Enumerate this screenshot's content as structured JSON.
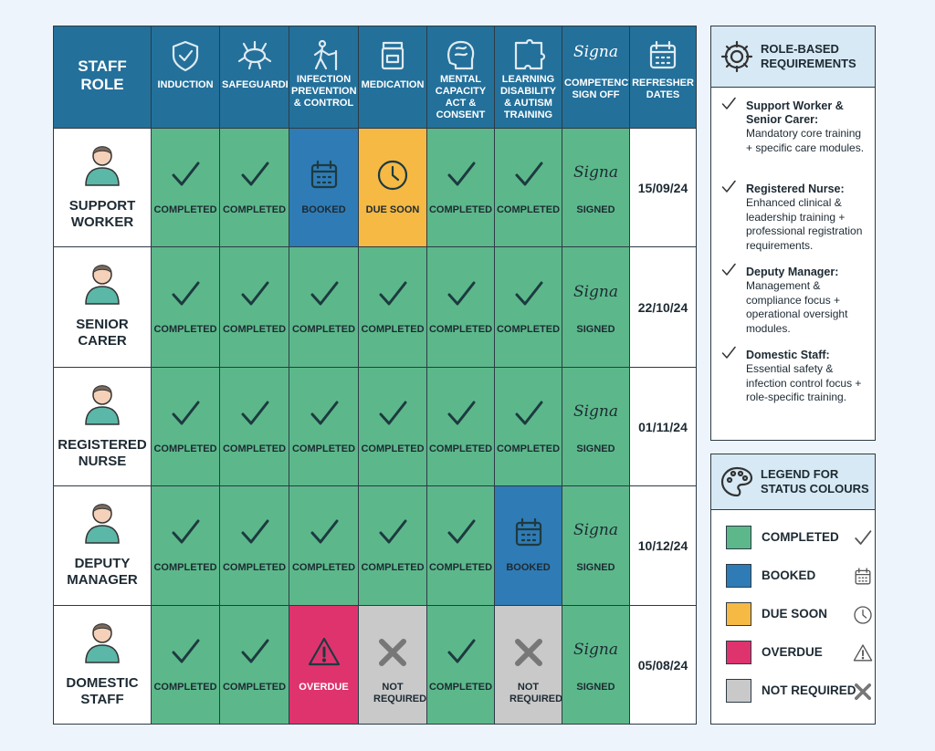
{
  "table": {
    "header": [
      "STAFF ROLE",
      "INDUCTION",
      "SAFEGUARDING",
      "INFECTION PREVENTION & CONTROL",
      "MEDICATION",
      "MENTAL CAPACITY ACT & CONSENT",
      "LEARNING DISABILITY & AUTISM TRAINING",
      "COMPETENCY SIGN OFF",
      "REFRESHER DATES"
    ],
    "signature": "Signa",
    "rows": [
      {
        "role": "SUPPORT WORKER",
        "cells": [
          "COMPLETED",
          "COMPLETED",
          "BOOKED",
          "DUE SOON",
          "COMPLETED",
          "COMPLETED",
          "SIGNED"
        ],
        "date": "15/09/24"
      },
      {
        "role": "SENIOR CARER",
        "cells": [
          "COMPLETED",
          "COMPLETED",
          "COMPLETED",
          "COMPLETED",
          "COMPLETED",
          "COMPLETED",
          "SIGNED"
        ],
        "date": "22/10/24"
      },
      {
        "role": "REGISTERED NURSE",
        "cells": [
          "COMPLETED",
          "COMPLETED",
          "COMPLETED",
          "COMPLETED",
          "COMPLETED",
          "COMPLETED",
          "SIGNED"
        ],
        "date": "01/11/24"
      },
      {
        "role": "DEPUTY MANAGER",
        "cells": [
          "COMPLETED",
          "COMPLETED",
          "COMPLETED",
          "COMPLETED",
          "COMPLETED",
          "BOOKED",
          "SIGNED"
        ],
        "date": "10/12/24"
      },
      {
        "role": "DOMESTIC STAFF",
        "cells": [
          "COMPLETED",
          "COMPLETED",
          "OVERDUE",
          "NOT REQUIRED",
          "COMPLETED",
          "NOT REQUIRED",
          "SIGNED"
        ],
        "date": "05/08/24"
      }
    ]
  },
  "requirements": {
    "title": "ROLE-BASED REQUIREMENTS",
    "items": [
      {
        "role": "Support Worker & Senior Carer:",
        "text": "Mandatory core training + specific care modules."
      },
      {
        "role": "Registered Nurse:",
        "text": "Enhanced clinical & leadership training + professional registration requirements."
      },
      {
        "role": "Deputy Manager:",
        "text": "Management & compliance focus + operational oversight modules."
      },
      {
        "role": "Domestic Staff:",
        "text": "Essential safety & infection control focus + role-specific training."
      }
    ]
  },
  "legend": {
    "title": "LEGEND FOR STATUS COLOURS",
    "items": [
      {
        "label": "COMPLETED",
        "color": "#5cb88a"
      },
      {
        "label": "BOOKED",
        "color": "#2f7bb5"
      },
      {
        "label": "DUE SOON",
        "color": "#f5b944"
      },
      {
        "label": "OVERDUE",
        "color": "#df336e"
      },
      {
        "label": "NOT REQUIRED",
        "color": "#c9c9c9"
      }
    ]
  }
}
